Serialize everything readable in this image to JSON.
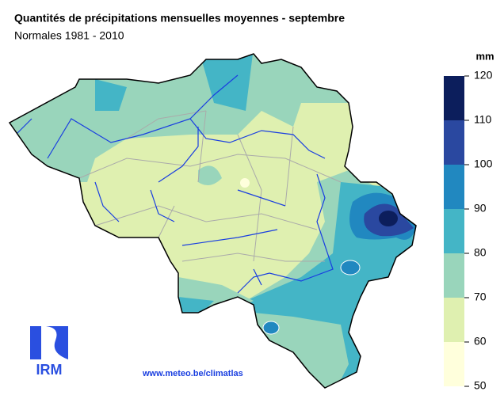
{
  "header": {
    "title": "Quantités de précipitations mensuelles moyennes - septembre",
    "subtitle": "Normales 1981 - 2010"
  },
  "legend": {
    "unit": "mm",
    "ticks": [
      50,
      60,
      70,
      80,
      90,
      100,
      110,
      120
    ],
    "colors": [
      "#ffffdc",
      "#dff0b0",
      "#99d5bb",
      "#44b5c6",
      "#2188c0",
      "#2a48a0",
      "#0c1e5c"
    ]
  },
  "footer": {
    "url": "www.meteo.be/climatlas",
    "logo": "IRM"
  }
}
